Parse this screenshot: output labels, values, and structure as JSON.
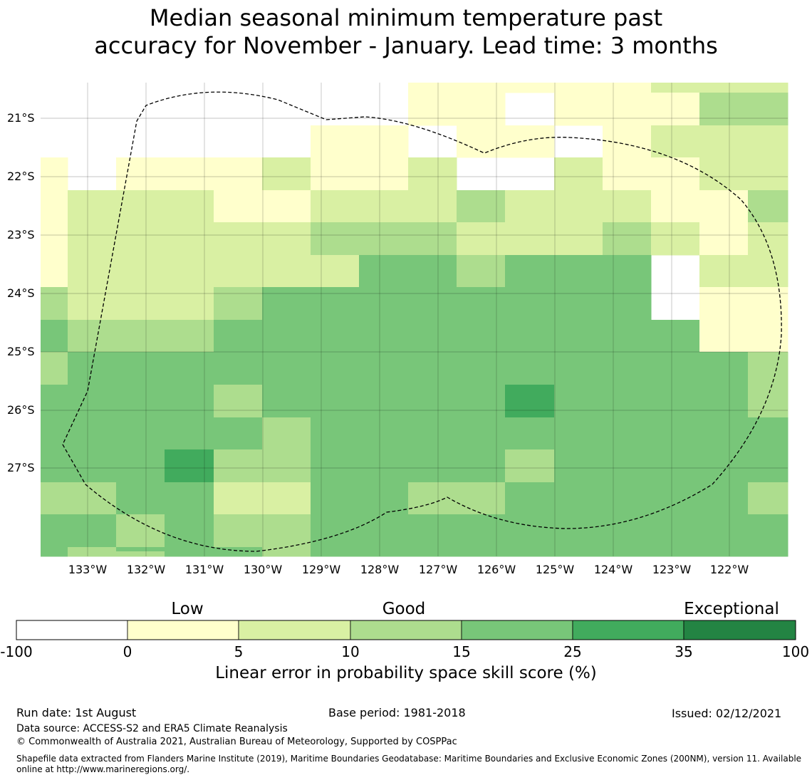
{
  "title": {
    "line1": "Median seasonal minimum temperature past",
    "line2": "accuracy for November - January. Lead time: 3 months"
  },
  "map": {
    "lat_labels": [
      "21°S",
      "22°S",
      "23°S",
      "24°S",
      "25°S",
      "26°S",
      "27°S"
    ],
    "lon_labels": [
      "133°W",
      "132°W",
      "131°W",
      "130°W",
      "129°W",
      "128°W",
      "127°W",
      "126°W",
      "125°W",
      "124°W",
      "123°W",
      "122°W"
    ],
    "class_colors": [
      "#ffffff",
      "#ffffcc",
      "#d9f0a3",
      "#addd8e",
      "#78c679",
      "#41ab5d",
      "#238443"
    ],
    "skill_grid": [
      "xxxxxxxx11111222",
      "xxxxxxxx11x11133",
      "xxxxxx11x11x1222",
      "1x1112112xx21122",
      "1222112223222113",
      "1222223332223212",
      "1222222443444x22",
      "3222344444444x11",
      "4333444444444411",
      "3444444444444443",
      "4444344444544443",
      "4444434444444444",
      "4445334444344444",
      "3344224433444443",
      "4434334444444444",
      "4344434444444444",
      "4334434444444444"
    ]
  },
  "legend": {
    "categories": [
      "Low",
      "Good",
      "Exceptional"
    ],
    "ticks": [
      "-100",
      "0",
      "5",
      "10",
      "15",
      "25",
      "35",
      "100"
    ],
    "title": "Linear error in probability space skill score (%)"
  },
  "footer": {
    "run_date": "Run date: 1st August",
    "base_period": "Base period: 1981-2018",
    "issued": "Issued: 02/12/2021",
    "data_source": "Data source: ACCESS-S2 and ERA5 Climate Reanalysis",
    "copyright": "© Commonwealth of Australia 2021, Australian Bureau of Meteorology, Supported by COSPPac",
    "shapefile_line1": "Shapefile data extracted from Flanders Marine Institute (2019), Maritime Boundaries Geodatabase: Maritime Boundaries and Exclusive Economic Zones (200NM), version 11. Available",
    "shapefile_line2": "online at http://www.marineregions.org/."
  }
}
